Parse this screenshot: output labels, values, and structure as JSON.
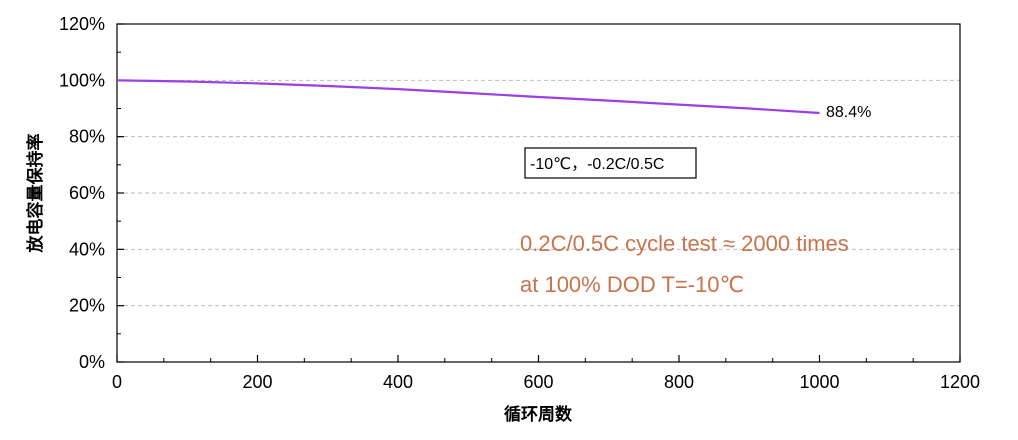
{
  "colors": {
    "series": "#9b3fe6",
    "note": "#c9734d",
    "grid": "#bdbdbd"
  },
  "chart_data": {
    "type": "line",
    "title": "",
    "xlabel": "循环周数",
    "ylabel": "放电容量保持率",
    "xlim": [
      0,
      1200
    ],
    "ylim": [
      0,
      120
    ],
    "x_ticks": [
      "0",
      "200",
      "400",
      "600",
      "800",
      "1000",
      "1200"
    ],
    "y_ticks": [
      "0%",
      "20%",
      "40%",
      "60%",
      "80%",
      "100%",
      "120%"
    ],
    "grid": "horizontal dashed",
    "series": [
      {
        "x": [
          0,
          100,
          200,
          300,
          400,
          500,
          600,
          700,
          800,
          900,
          1000
        ],
        "y": [
          100,
          99.6,
          98.9,
          98.0,
          96.9,
          95.5,
          94.1,
          92.8,
          91.4,
          90.0,
          88.4
        ]
      }
    ],
    "end_label": "88.4%",
    "legend_box": "-10℃，-0.2C/0.5C",
    "notes": [
      "0.2C/0.5C cycle test ≈ 2000 times",
      "at 100% DOD   T=-10℃"
    ]
  }
}
